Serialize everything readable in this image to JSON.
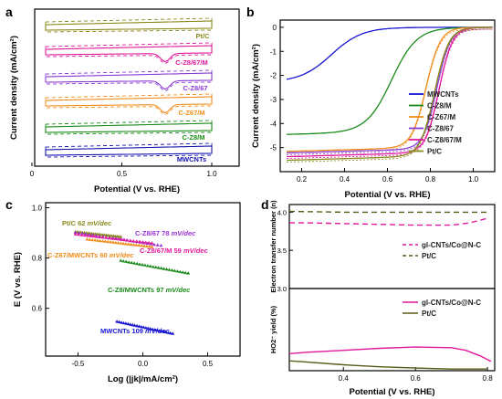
{
  "chart_data": [
    {
      "panel": "a",
      "type": "line",
      "xlabel": "Potential (V vs. RHE)",
      "ylabel": "Current density (mA/cm²)",
      "xlim": [
        0.0,
        1.2
      ],
      "x_ticks": [
        0.0,
        0.5,
        1.0
      ],
      "x_tick_labels": [
        "0",
        "0.5",
        "1.0"
      ],
      "stacked_offsets": true,
      "series": [
        {
          "name": "Pt/C",
          "color": "#8a8a1e",
          "has_dip": false,
          "dashed_overlay": true
        },
        {
          "name": "C-Z8/67/M",
          "color": "#e0179b",
          "has_dip": true,
          "dashed_overlay": true
        },
        {
          "name": "C-Z8/67",
          "color": "#8a3bd6",
          "has_dip": true,
          "dashed_overlay": true
        },
        {
          "name": "C-Z67/M",
          "color": "#f08c1a",
          "has_dip": true,
          "dashed_overlay": true
        },
        {
          "name": "C-Z8/M",
          "color": "#1a8a1a",
          "has_dip": false,
          "dashed_overlay": true
        },
        {
          "name": "MWCNTs",
          "color": "#1515b0",
          "has_dip": false,
          "dashed_overlay": true
        }
      ]
    },
    {
      "panel": "b",
      "type": "line",
      "xlabel": "Potential (V vs. RHE)",
      "ylabel": "Current density (mA/cm²)",
      "xlim": [
        0.1,
        1.1
      ],
      "ylim": [
        -6,
        0.3
      ],
      "x_ticks": [
        0.2,
        0.4,
        0.6,
        0.8,
        1.0
      ],
      "y_ticks": [
        0,
        -1,
        -2,
        -3,
        -4,
        -5
      ],
      "legend_position": "bottom-right",
      "series": [
        {
          "name": "MWCNTs",
          "color": "#1515d0",
          "E_half": 0.34,
          "j_lim": -2.25,
          "k": 14
        },
        {
          "name": "C-Z8/M",
          "color": "#1a8a1a",
          "E_half": 0.62,
          "j_lim": -4.35,
          "k": 17
        },
        {
          "name": "C-Z67/M",
          "color": "#f08c1a",
          "E_half": 0.78,
          "j_lim": -5.0,
          "k": 30
        },
        {
          "name": "C-Z8/67",
          "color": "#8a3bd6",
          "E_half": 0.83,
          "j_lim": -5.05,
          "k": 32
        },
        {
          "name": "C-Z8/67/M",
          "color": "#e0179b",
          "E_half": 0.84,
          "j_lim": -5.2,
          "k": 32
        },
        {
          "name": "Pt/C",
          "color": "#8a8a1e",
          "E_half": 0.82,
          "j_lim": -5.35,
          "k": 30
        }
      ]
    },
    {
      "panel": "c",
      "type": "scatter",
      "xlabel": "Log (|jk|/mA/cm²)",
      "ylabel": "E (V vs. RHE)",
      "xlim": [
        -0.75,
        0.75
      ],
      "ylim": [
        0.41,
        1.02
      ],
      "x_ticks": [
        -0.5,
        0.0,
        0.5
      ],
      "x_tick_labels": [
        "-0.5",
        "0.0",
        "0.5"
      ],
      "y_ticks": [
        0.6,
        0.8,
        1.0
      ],
      "y_tick_labels": [
        "0.6",
        "0.8",
        "1.0"
      ],
      "series": [
        {
          "name": "Pt/C",
          "slope": "62 mV/dec",
          "color": "#8a8a1e",
          "x_start": -0.52,
          "x_end": -0.17,
          "y_start": 0.905,
          "y_end": 0.885
        },
        {
          "name": "C-Z8/67",
          "slope": "78 mV/dec",
          "color": "#9b30d6",
          "x_start": -0.52,
          "x_end": 0.14,
          "y_start": 0.902,
          "y_end": 0.85
        },
        {
          "name": "C-Z8/67/M",
          "slope": "59 mV/dec",
          "color": "#e0179b",
          "x_start": -0.52,
          "x_end": 0.07,
          "y_start": 0.895,
          "y_end": 0.86
        },
        {
          "name": "C-Z67/MWCNTs",
          "slope": "60 mV/dec",
          "color": "#f08c1a",
          "x_start": -0.43,
          "x_end": 0.07,
          "y_start": 0.875,
          "y_end": 0.845
        },
        {
          "name": "C-Z8/MWCNTs",
          "slope": "97 mV/dec",
          "color": "#1a8a1a",
          "x_start": -0.17,
          "x_end": 0.35,
          "y_start": 0.79,
          "y_end": 0.74
        },
        {
          "name": "MWCNTs",
          "slope": "109 mV/dec",
          "color": "#1515d0",
          "x_start": -0.2,
          "x_end": 0.23,
          "y_start": 0.548,
          "y_end": 0.5
        }
      ]
    },
    {
      "panel": "d",
      "type": "line",
      "xlabel": "Potential (V vs. RHE)",
      "top": {
        "ylabel": "Electron transfer number (n)",
        "ylim": [
          3.0,
          4.1
        ],
        "y_ticks": [
          3.0,
          3.5,
          4.0
        ],
        "y_tick_labels": [
          "3.0",
          "3.5",
          "4.0"
        ],
        "series": [
          {
            "name": "gl-CNTs/Co@N-C",
            "color": "#e0179b",
            "dashed": true,
            "x": [
              0.25,
              0.3,
              0.4,
              0.5,
              0.6,
              0.7,
              0.75,
              0.8
            ],
            "y": [
              3.86,
              3.86,
              3.85,
              3.84,
              3.83,
              3.83,
              3.86,
              3.92
            ]
          },
          {
            "name": "Pt/C",
            "color": "#5a5a18",
            "dashed": true,
            "x": [
              0.25,
              0.4,
              0.6,
              0.8
            ],
            "y": [
              4.01,
              4.0,
              4.0,
              4.0
            ]
          }
        ]
      },
      "bottom": {
        "ylabel": "HO2⁻ yield (%)",
        "xlim": [
          0.25,
          0.82
        ],
        "x_ticks": [
          0.4,
          0.6,
          0.8
        ],
        "x_tick_labels": [
          "0.4",
          "0.6",
          "0.8"
        ],
        "ylim": [
          0,
          25
        ],
        "series": [
          {
            "name": "gl-CNTs/Co@N-C",
            "color": "#e0179b",
            "dashed": false,
            "x": [
              0.25,
              0.3,
              0.4,
              0.5,
              0.6,
              0.7,
              0.74,
              0.78,
              0.81
            ],
            "y": [
              5.2,
              5.6,
              6.2,
              6.8,
              7.2,
              7.0,
              6.2,
              4.5,
              2.8
            ]
          },
          {
            "name": "Pt/C",
            "color": "#5a5a18",
            "dashed": false,
            "x": [
              0.25,
              0.3,
              0.4,
              0.5,
              0.6,
              0.7,
              0.8
            ],
            "y": [
              3.0,
              2.6,
              1.8,
              1.2,
              0.8,
              0.5,
              0.5
            ]
          }
        ]
      }
    }
  ],
  "labels": {
    "panel_a": "a",
    "panel_b": "b",
    "panel_c": "c",
    "panel_d": "d",
    "mv_dec": "mV/dec"
  }
}
